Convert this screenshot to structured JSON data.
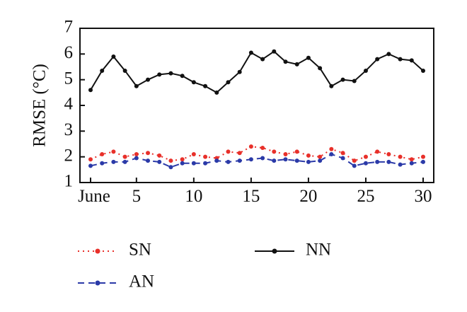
{
  "chart_data": {
    "type": "line",
    "title": "",
    "xlabel": "",
    "ylabel": "RMSE (°C)",
    "xlim": [
      1,
      30
    ],
    "ylim": [
      1,
      7
    ],
    "x_ticks": [
      1,
      5,
      10,
      15,
      20,
      25,
      30
    ],
    "x_tick_labels": [
      "June",
      "5",
      "10",
      "15",
      "20",
      "25",
      "30"
    ],
    "y_ticks": [
      1,
      2,
      3,
      4,
      5,
      6,
      7
    ],
    "y_tick_labels": [
      "1",
      "2",
      "3",
      "4",
      "5",
      "6",
      "7"
    ],
    "grid": false,
    "legend_position": "bottom",
    "x": [
      1,
      2,
      3,
      4,
      5,
      6,
      7,
      8,
      9,
      10,
      11,
      12,
      13,
      14,
      15,
      16,
      17,
      18,
      19,
      20,
      21,
      22,
      23,
      24,
      25,
      26,
      27,
      28,
      29,
      30
    ],
    "series": [
      {
        "name": "SN",
        "color": "#e8302a",
        "style": "dotted",
        "values": [
          1.9,
          2.1,
          2.2,
          2.0,
          2.1,
          2.15,
          2.05,
          1.85,
          1.9,
          2.1,
          2.0,
          1.95,
          2.2,
          2.15,
          2.4,
          2.35,
          2.2,
          2.1,
          2.2,
          2.05,
          2.0,
          2.3,
          2.15,
          1.85,
          2.0,
          2.2,
          2.1,
          2.0,
          1.9,
          2.0
        ]
      },
      {
        "name": "AN",
        "color": "#2b3aa8",
        "style": "dashed",
        "values": [
          1.65,
          1.75,
          1.8,
          1.8,
          1.95,
          1.85,
          1.8,
          1.6,
          1.75,
          1.75,
          1.75,
          1.85,
          1.8,
          1.85,
          1.9,
          1.95,
          1.85,
          1.9,
          1.85,
          1.8,
          1.85,
          2.1,
          1.95,
          1.65,
          1.75,
          1.8,
          1.8,
          1.7,
          1.75,
          1.8
        ]
      },
      {
        "name": "NN",
        "color": "#111111",
        "style": "solid",
        "values": [
          4.6,
          5.35,
          5.9,
          5.35,
          4.75,
          5.0,
          5.2,
          5.25,
          5.15,
          4.9,
          4.75,
          4.5,
          4.9,
          5.3,
          6.05,
          5.8,
          6.1,
          5.7,
          5.6,
          5.85,
          5.45,
          4.75,
          5.0,
          4.95,
          5.35,
          5.8,
          6.0,
          5.8,
          5.75,
          5.35
        ]
      }
    ]
  }
}
